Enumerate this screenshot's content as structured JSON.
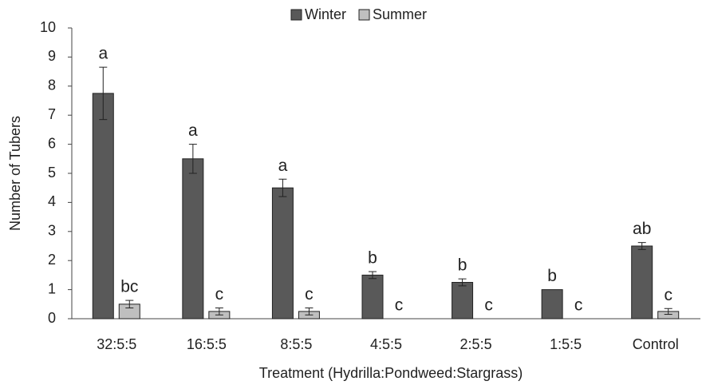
{
  "chart_data": {
    "type": "bar",
    "x_label": "Treatment (Hydrilla:Pondweed:Stargrass)",
    "y_label": "Number of Tubers",
    "categories": [
      "32:5:5",
      "16:5:5",
      "8:5:5",
      "4:5:5",
      "2:5:5",
      "1:5:5",
      "Control"
    ],
    "series": [
      {
        "name": "Winter",
        "color": "#595959",
        "values": [
          7.75,
          5.5,
          4.5,
          1.5,
          1.25,
          1.0,
          2.5
        ],
        "errors": [
          0.9,
          0.5,
          0.3,
          0.12,
          0.12,
          0,
          0.12
        ],
        "letters": [
          "a",
          "a",
          "a",
          "b",
          "b",
          "b",
          "ab"
        ]
      },
      {
        "name": "Summer",
        "color": "#bfbfbf",
        "values": [
          0.5,
          0.25,
          0.25,
          0,
          0,
          0,
          0.25
        ],
        "errors": [
          0.13,
          0.12,
          0.12,
          0,
          0,
          0,
          0.1
        ],
        "letters": [
          "bc",
          "c",
          "c",
          "c",
          "c",
          "c",
          "c"
        ]
      }
    ],
    "ylim": [
      0,
      10
    ],
    "yticks": [
      0,
      1,
      2,
      3,
      4,
      5,
      6,
      7,
      8,
      9,
      10
    ],
    "grid": false,
    "legend": "top"
  }
}
